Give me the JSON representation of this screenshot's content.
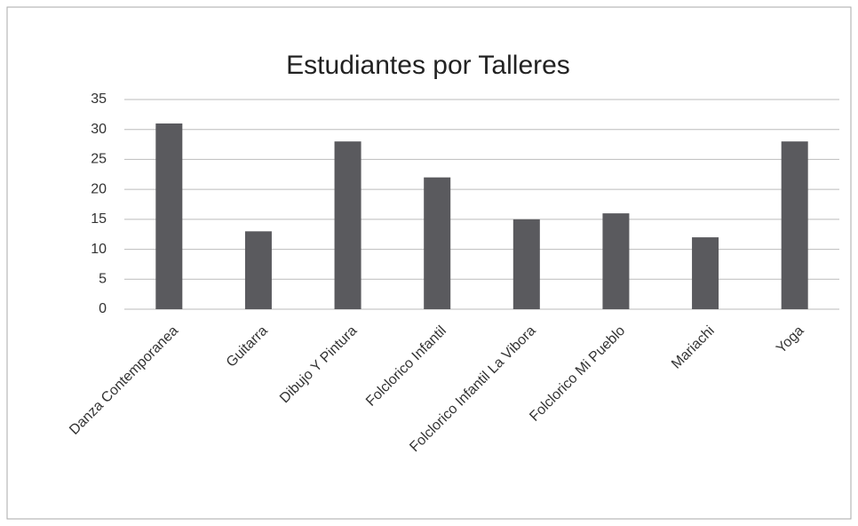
{
  "chart_data": {
    "type": "bar",
    "title": "Estudiantes por Talleres",
    "categories": [
      "Danza Contemporanea",
      "Guitarra",
      "Dibujo Y Pintura",
      "Folclorico Infantil",
      "Folclorico Infantil La Vibora",
      "Folclorico Mi Pueblo",
      "Mariachi",
      "Yoga"
    ],
    "values": [
      31,
      13,
      28,
      22,
      15,
      16,
      12,
      28
    ],
    "color": "#5a5a5e",
    "ylim": [
      0,
      35
    ],
    "yticks": [
      0,
      5,
      10,
      15,
      20,
      25,
      30,
      35
    ],
    "grid": true
  }
}
